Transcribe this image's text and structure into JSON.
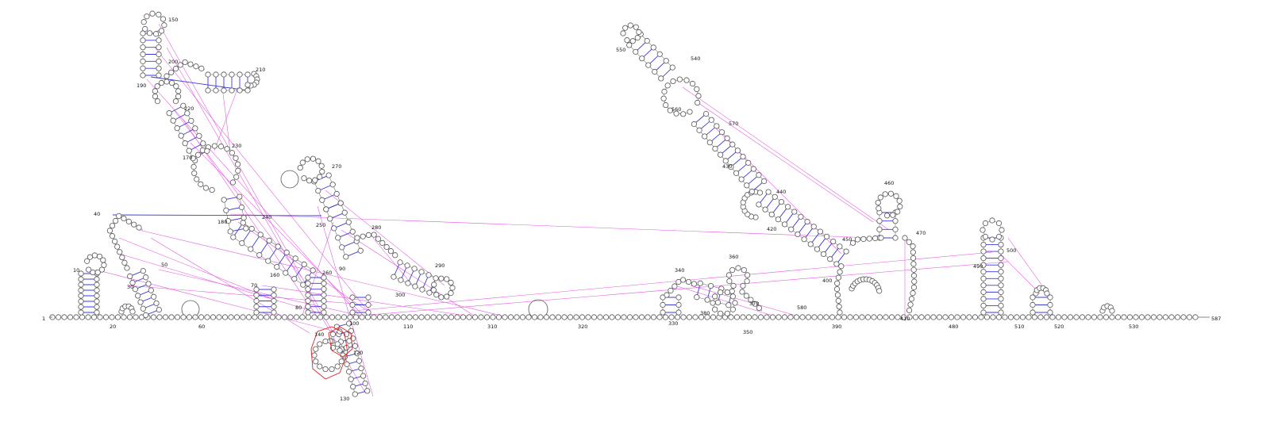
{
  "figure": {
    "type": "rna-secondary-structure",
    "sequence_start": "1",
    "sequence_end": "587",
    "colors": {
      "nucleotide_stroke": "#555555",
      "base_pair": "#3b3bdc",
      "pseudoknot": "#e056e0",
      "highlight": "#e02020"
    }
  },
  "position_labels": [
    "10",
    "20",
    "30",
    "40",
    "50",
    "60",
    "70",
    "80",
    "90",
    "100",
    "110",
    "120",
    "130",
    "140",
    "150",
    "160",
    "170",
    "180",
    "190",
    "200",
    "210",
    "220",
    "230",
    "240",
    "250",
    "260",
    "270",
    "280",
    "290",
    "300",
    "310",
    "320",
    "330",
    "340",
    "350",
    "360",
    "370",
    "380",
    "390",
    "400",
    "410",
    "420",
    "430",
    "440",
    "450",
    "460",
    "470",
    "480",
    "490",
    "500",
    "510",
    "520",
    "530",
    "540",
    "550",
    "560",
    "570",
    "580"
  ]
}
